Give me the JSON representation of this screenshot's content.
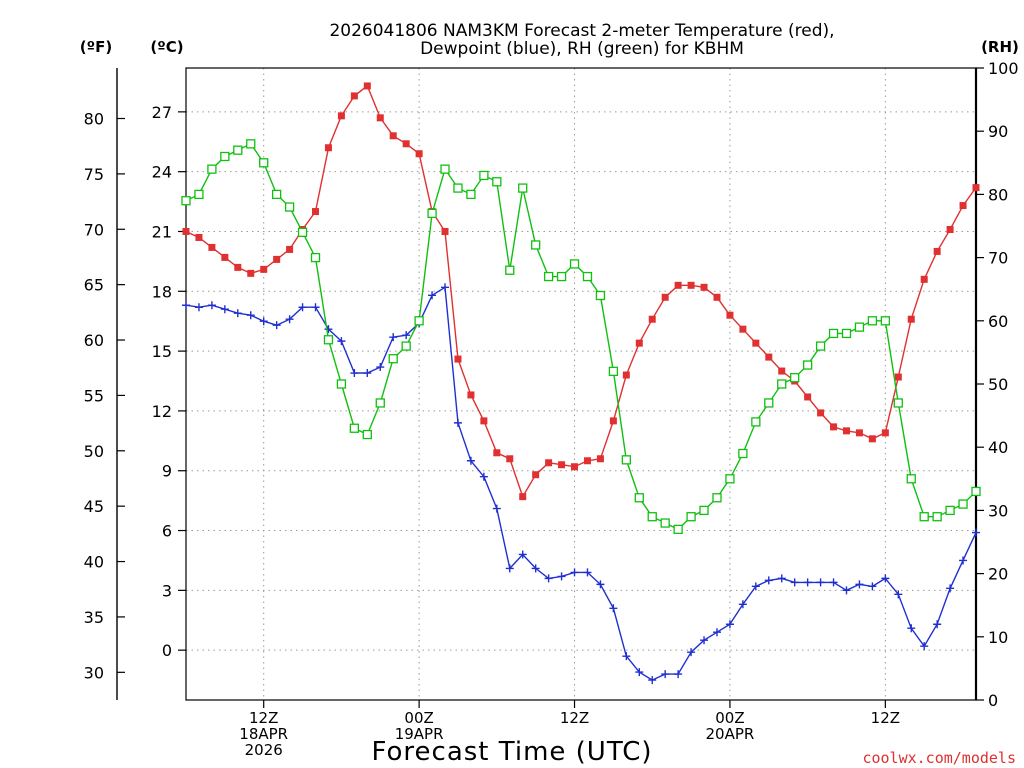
{
  "chart_data": {
    "type": "line",
    "title_line1": "2026041806 NAM3KM Forecast 2-meter Temperature (red),",
    "title_line2": "Dewpoint (blue), RH (green) for KBHM",
    "xlabel": "Forecast Time (UTC)",
    "credit": "coolwx.com/models",
    "left_unit_f": "(ºF)",
    "left_unit_c": "(ºC)",
    "right_unit": "(RH)",
    "x_range_hours": [
      0,
      61
    ],
    "celsius_range": [
      -2.5,
      29.2
    ],
    "rh_range": [
      0,
      100
    ],
    "celsius_ticks": [
      0,
      3,
      6,
      9,
      12,
      15,
      18,
      21,
      24,
      27
    ],
    "fahrenheit_ticks": [
      30,
      35,
      40,
      45,
      50,
      55,
      60,
      65,
      70,
      75,
      80
    ],
    "rh_ticks": [
      0,
      10,
      20,
      30,
      40,
      50,
      60,
      70,
      80,
      90,
      100
    ],
    "x_ticks": [
      {
        "hour": 6,
        "lines": [
          "12Z",
          "18APR",
          "2026"
        ]
      },
      {
        "hour": 18,
        "lines": [
          "00Z",
          "19APR"
        ]
      },
      {
        "hour": 30,
        "lines": [
          "12Z"
        ]
      },
      {
        "hour": 42,
        "lines": [
          "00Z",
          "20APR"
        ]
      },
      {
        "hour": 54,
        "lines": [
          "12Z"
        ]
      }
    ],
    "colors": {
      "temperature": "#e03030",
      "dewpoint": "#2030d0",
      "rh": "#10c010",
      "grid": "#9a9a9a"
    },
    "x_hours": [
      0,
      1,
      2,
      3,
      4,
      5,
      6,
      7,
      8,
      9,
      10,
      11,
      12,
      13,
      14,
      15,
      16,
      17,
      18,
      19,
      20,
      21,
      22,
      23,
      24,
      25,
      26,
      27,
      28,
      29,
      30,
      31,
      32,
      33,
      34,
      35,
      36,
      37,
      38,
      39,
      40,
      41,
      42,
      43,
      44,
      45,
      46,
      47,
      48,
      49,
      50,
      51,
      52,
      53,
      54,
      55,
      56,
      57,
      58,
      59,
      60,
      61
    ],
    "series": [
      {
        "name": "Temperature",
        "unit": "C",
        "values": [
          21.0,
          20.7,
          20.2,
          19.7,
          19.2,
          18.9,
          19.1,
          19.6,
          20.1,
          21.1,
          22.0,
          25.2,
          26.8,
          27.8,
          28.3,
          26.7,
          25.8,
          25.4,
          24.9,
          22.0,
          21.0,
          14.6,
          12.8,
          11.5,
          9.9,
          9.6,
          7.7,
          8.8,
          9.4,
          9.3,
          9.2,
          9.5,
          9.6,
          11.5,
          13.8,
          15.4,
          16.6,
          17.7,
          18.3,
          18.3,
          18.2,
          17.7,
          16.8,
          16.1,
          15.4,
          14.7,
          14.0,
          13.5,
          12.7,
          11.9,
          11.2,
          11.0,
          10.9,
          10.6,
          10.9,
          13.7,
          16.6,
          18.6,
          20.0,
          21.1,
          22.3,
          23.2
        ]
      },
      {
        "name": "Dewpoint",
        "unit": "C",
        "values": [
          17.3,
          17.2,
          17.3,
          17.1,
          16.9,
          16.8,
          16.5,
          16.3,
          16.6,
          17.2,
          17.2,
          16.1,
          15.5,
          13.9,
          13.9,
          14.2,
          15.7,
          15.8,
          16.4,
          17.8,
          18.2,
          11.4,
          9.5,
          8.7,
          7.1,
          4.1,
          4.8,
          4.1,
          3.6,
          3.7,
          3.9,
          3.9,
          3.3,
          2.1,
          -0.3,
          -1.1,
          -1.5,
          -1.2,
          -1.2,
          -0.1,
          0.5,
          0.9,
          1.3,
          2.3,
          3.2,
          3.5,
          3.6,
          3.4,
          3.4,
          3.4,
          3.4,
          3.0,
          3.3,
          3.2,
          3.6,
          2.8,
          1.1,
          0.2,
          1.3,
          3.1,
          4.5,
          5.9
        ]
      },
      {
        "name": "RH",
        "unit": "%",
        "values": [
          79,
          80,
          84,
          86,
          87,
          88,
          85,
          80,
          78,
          74,
          70,
          57,
          50,
          43,
          42,
          47,
          54,
          56,
          60,
          77,
          84,
          81,
          80,
          83,
          82,
          68,
          81,
          72,
          67,
          67,
          69,
          67,
          64,
          52,
          38,
          32,
          29,
          28,
          27,
          29,
          30,
          32,
          35,
          39,
          44,
          47,
          50,
          51,
          53,
          56,
          58,
          58,
          59,
          60,
          60,
          47,
          35,
          29,
          29,
          30,
          31,
          33
        ]
      }
    ]
  }
}
